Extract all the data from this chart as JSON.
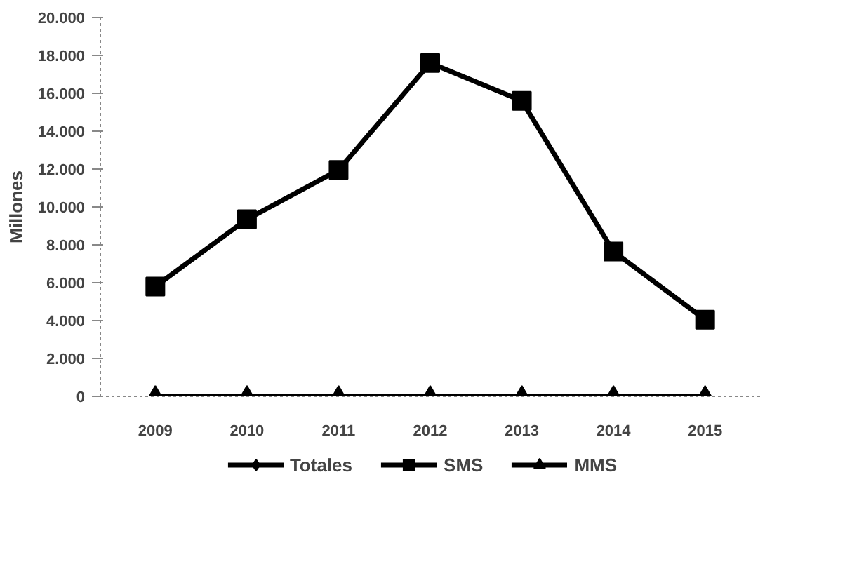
{
  "chart_data": {
    "type": "line",
    "ylabel": "Millones",
    "categories": [
      "2009",
      "2010",
      "2011",
      "2012",
      "2013",
      "2014",
      "2015"
    ],
    "series": [
      {
        "name": "Totales",
        "color": "#000000",
        "marker": "diamond",
        "values": [
          null,
          null,
          null,
          null,
          null,
          null,
          null
        ]
      },
      {
        "name": "SMS",
        "color": "#000000",
        "marker": "square",
        "values": [
          5800,
          9350,
          11950,
          17600,
          15600,
          7650,
          4050
        ]
      },
      {
        "name": "MMS",
        "color": "#000000",
        "marker": "triangle",
        "values": [
          0,
          0,
          0,
          0,
          0,
          0,
          0
        ]
      }
    ],
    "ylim": [
      0,
      20000
    ],
    "yticks": [
      {
        "value": 0,
        "label": "0"
      },
      {
        "value": 2000,
        "label": "2.000"
      },
      {
        "value": 4000,
        "label": "4.000"
      },
      {
        "value": 6000,
        "label": "6.000"
      },
      {
        "value": 8000,
        "label": "8.000"
      },
      {
        "value": 10000,
        "label": "10.000"
      },
      {
        "value": 12000,
        "label": "12.000"
      },
      {
        "value": 14000,
        "label": "14.000"
      },
      {
        "value": 16000,
        "label": "16.000"
      },
      {
        "value": 18000,
        "label": "18.000"
      },
      {
        "value": 20000,
        "label": "20.000"
      }
    ],
    "grid": false,
    "legend": "bottom",
    "line_style": "solid"
  }
}
